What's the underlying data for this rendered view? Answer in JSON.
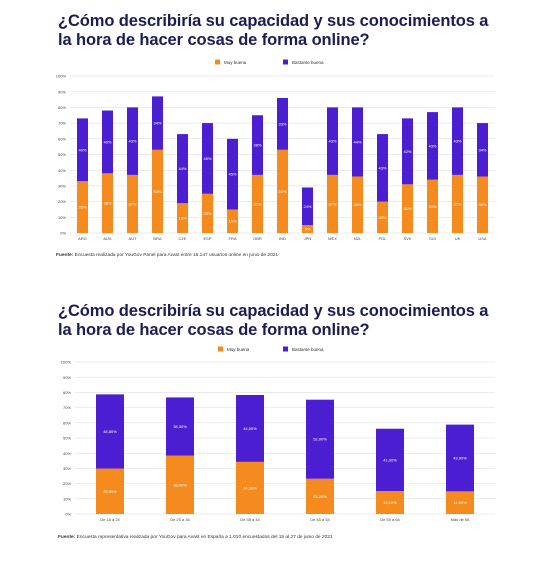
{
  "chart_data": [
    {
      "type": "bar",
      "stacked": true,
      "title": "¿Cómo describiría su capacidad y sus conocimientos a la hora de hacer cosas de forma online?",
      "categories": [
        "ARG",
        "AUS",
        "AUT",
        "BRA",
        "CZE",
        "ESP",
        "FRA",
        "GBR",
        "IND",
        "JPN",
        "MEX",
        "NZL",
        "POL",
        "SVK",
        "SUI",
        "UK",
        "USA"
      ],
      "series": [
        {
          "name": "Muy buena",
          "color": "#f58b1f",
          "values": [
            33,
            38,
            37,
            53,
            19,
            25,
            15,
            37,
            53,
            5,
            37,
            36,
            20,
            31,
            34,
            37,
            36
          ],
          "labels": [
            "33%",
            "38%",
            "37%",
            "53%",
            "19%",
            "25%",
            "15%",
            "37%",
            "53%",
            "5%",
            "37%",
            "36%",
            "20%",
            "31%",
            "34%",
            "37%",
            "36%"
          ]
        },
        {
          "name": "Bastante buena",
          "color": "#4b1fd1",
          "values": [
            40,
            40,
            43,
            34,
            44,
            45,
            45,
            38,
            33,
            24,
            43,
            44,
            43,
            42,
            43,
            43,
            34
          ],
          "labels": [
            "40%",
            "40%",
            "43%",
            "34%",
            "44%",
            "45%",
            "45%",
            "38%",
            "33%",
            "24%",
            "43%",
            "44%",
            "43%",
            "42%",
            "43%",
            "43%",
            "34%"
          ]
        }
      ],
      "ylim": [
        0,
        100
      ],
      "yticks": [
        "0%",
        "10%",
        "20%",
        "30%",
        "40%",
        "50%",
        "60%",
        "70%",
        "80%",
        "90%",
        "100%"
      ],
      "legend": "top-center",
      "grid": true,
      "source_label": "Fuente:",
      "source_text": "Encuesta realizada por YouGov Panel para Avast entre 16.147 usuarios online en junio de 2021"
    },
    {
      "type": "bar",
      "stacked": true,
      "title": "¿Cómo describiría su capacidad y sus conocimientos a la hora de hacer cosas de forma online?",
      "categories": [
        "De 18 a 24",
        "De 25 a 34",
        "De 35 a 44",
        "De 45 a 54",
        "De 55 a 64",
        "Más de 65"
      ],
      "series": [
        {
          "name": "Muy buena",
          "color": "#f58b1f",
          "values": [
            29.9,
            38.4,
            34.3,
            23.2,
            15.1,
            14.9
          ],
          "labels": [
            "29,90%",
            "38,40%",
            "34,30%",
            "23,20%",
            "15,10%",
            "14,90%"
          ]
        },
        {
          "name": "Bastante buena",
          "color": "#4b1fd1",
          "values": [
            48.8,
            38.3,
            44.0,
            52.0,
            41.0,
            43.9
          ],
          "labels": [
            "48,80%",
            "38,30%",
            "44,00%",
            "52,00%",
            "41,00%",
            "43,90%"
          ]
        }
      ],
      "ylim": [
        0,
        100
      ],
      "yticks": [
        "0%",
        "10%",
        "20%",
        "30%",
        "40%",
        "50%",
        "60%",
        "70%",
        "80%",
        "90%",
        "100%"
      ],
      "legend": "top-center",
      "grid": true,
      "source_label": "Fuente:",
      "source_text": "Encuesta representativa realizada por YouGov para Avast en España a 1.010 encuestados del 15 al 27 de junio de 2021"
    }
  ]
}
